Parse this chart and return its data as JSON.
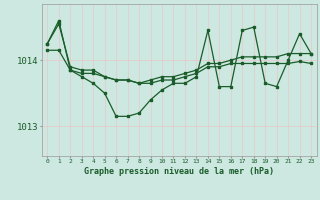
{
  "bg_color": "#cce8e0",
  "grid_color_v": "#e8c8c8",
  "grid_color_h": "#e8c8c8",
  "line_color": "#1a5c2a",
  "text_color": "#1a5c2a",
  "xlabel": "Graphe pression niveau de la mer (hPa)",
  "x_ticks": [
    0,
    1,
    2,
    3,
    4,
    5,
    6,
    7,
    8,
    9,
    10,
    11,
    12,
    13,
    14,
    15,
    16,
    17,
    18,
    19,
    20,
    21,
    22,
    23
  ],
  "ylim": [
    1012.55,
    1014.85
  ],
  "yticks": [
    1013,
    1014
  ],
  "line1": [
    1014.25,
    1014.55,
    1013.9,
    1013.85,
    1013.85,
    1013.75,
    1013.7,
    1013.7,
    1013.65,
    1013.7,
    1013.75,
    1013.75,
    1013.8,
    1013.85,
    1013.95,
    1013.95,
    1014.0,
    1014.05,
    1014.05,
    1014.05,
    1014.05,
    1014.1,
    1014.1,
    1014.1
  ],
  "line2": [
    1014.15,
    1014.15,
    1013.85,
    1013.8,
    1013.8,
    1013.75,
    1013.7,
    1013.7,
    1013.65,
    1013.65,
    1013.7,
    1013.7,
    1013.75,
    1013.8,
    1013.9,
    1013.9,
    1013.95,
    1013.95,
    1013.95,
    1013.95,
    1013.95,
    1013.95,
    1013.98,
    1013.95
  ],
  "line3": [
    1014.25,
    1014.6,
    1013.85,
    1013.75,
    1013.65,
    1013.5,
    1013.15,
    1013.15,
    1013.2,
    1013.4,
    1013.55,
    1013.65,
    1013.65,
    1013.75,
    1014.45,
    1013.6,
    1013.6,
    1014.45,
    1014.5,
    1013.65,
    1013.6,
    1014.0,
    1014.4,
    1014.1
  ]
}
